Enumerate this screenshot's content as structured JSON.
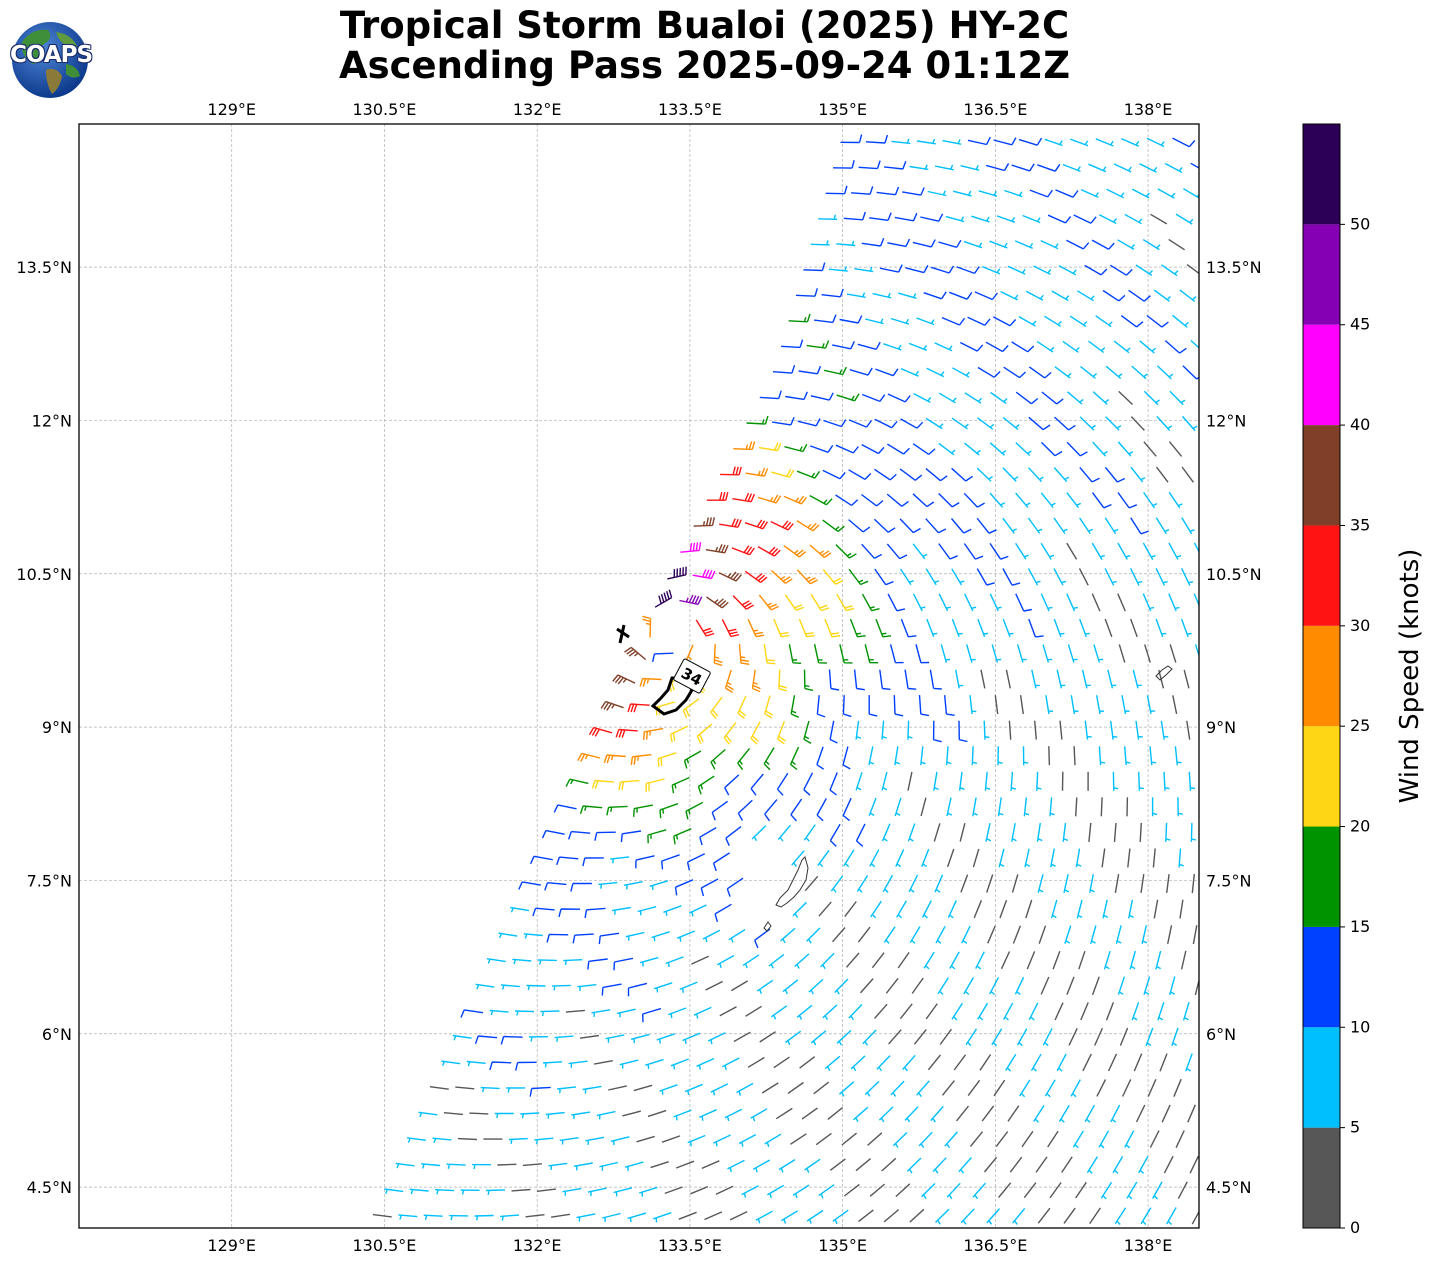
{
  "title": {
    "line1": "Tropical Storm Bualoi (2025) HY-2C",
    "line2": "Ascending Pass 2025-09-24 01:12Z"
  },
  "logo": {
    "text": "COAPS",
    "icon": "globe-icon"
  },
  "map": {
    "lon_range": [
      127.5,
      138.5
    ],
    "lat_range": [
      4.1,
      14.9
    ],
    "lon_ticks": [
      {
        "value": 129,
        "label": "129°E"
      },
      {
        "value": 130.5,
        "label": "130.5°E"
      },
      {
        "value": 132,
        "label": "132°E"
      },
      {
        "value": 133.5,
        "label": "133.5°E"
      },
      {
        "value": 135,
        "label": "135°E"
      },
      {
        "value": 136.5,
        "label": "136.5°E"
      },
      {
        "value": 138,
        "label": "138°E"
      }
    ],
    "lat_ticks": [
      {
        "value": 4.5,
        "label": "4.5°N"
      },
      {
        "value": 6,
        "label": "6°N"
      },
      {
        "value": 7.5,
        "label": "7.5°N"
      },
      {
        "value": 9,
        "label": "9°N"
      },
      {
        "value": 10.5,
        "label": "10.5°N"
      },
      {
        "value": 12,
        "label": "12°N"
      },
      {
        "value": 13.5,
        "label": "13.5°N"
      }
    ],
    "grid": true,
    "storm_center": {
      "lon": 133.3,
      "lat": 9.9
    },
    "wind_radius_contour": {
      "label": "34"
    },
    "swath": {
      "left_edge": [
        [
          130.3,
          4.1
        ],
        [
          131.6,
          7.0
        ],
        [
          133.0,
          10.0
        ],
        [
          134.3,
          12.5
        ],
        [
          135.0,
          14.9
        ]
      ],
      "right_edge": [
        [
          138.5,
          4.1
        ],
        [
          138.5,
          14.9
        ]
      ]
    }
  },
  "colorbar": {
    "label": "Wind Speed (knots)",
    "ticks": [
      0,
      5,
      10,
      15,
      20,
      25,
      30,
      35,
      40,
      45,
      50
    ],
    "bins": [
      {
        "from": 0,
        "to": 5,
        "color": "#575757"
      },
      {
        "from": 5,
        "to": 10,
        "color": "#00bfff"
      },
      {
        "from": 10,
        "to": 15,
        "color": "#0040ff"
      },
      {
        "from": 15,
        "to": 20,
        "color": "#009300"
      },
      {
        "from": 20,
        "to": 25,
        "color": "#ffd613"
      },
      {
        "from": 25,
        "to": 30,
        "color": "#ff8c00"
      },
      {
        "from": 30,
        "to": 35,
        "color": "#ff1313"
      },
      {
        "from": 35,
        "to": 40,
        "color": "#7f3f28"
      },
      {
        "from": 40,
        "to": 45,
        "color": "#ff00ff"
      },
      {
        "from": 45,
        "to": 50,
        "color": "#8600b3"
      },
      {
        "from": 50,
        "to": 55,
        "color": "#2d0058"
      }
    ]
  },
  "wind_field": {
    "type": "cyclonic",
    "center": {
      "lon": 133.3,
      "lat": 9.9
    },
    "grid_spacing_deg": 0.25,
    "regions": [
      {
        "area": "storm core, north-west of center",
        "speed_kt": "30-40"
      },
      {
        "area": "inner ring",
        "speed_kt": "20-30"
      },
      {
        "area": "outer ring north and west",
        "speed_kt": "15-25"
      },
      {
        "area": "south-east quadrant",
        "speed_kt": "5-15"
      }
    ]
  }
}
